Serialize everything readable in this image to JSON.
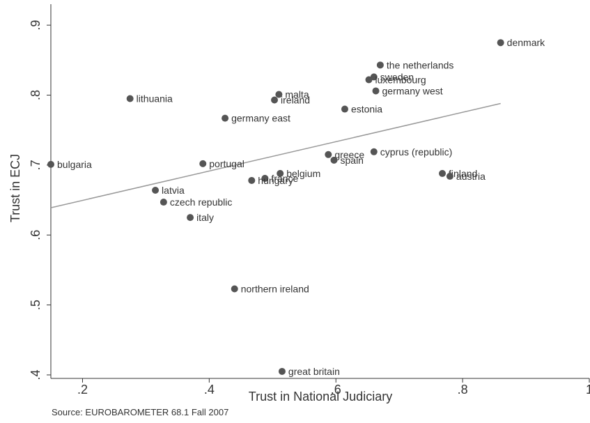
{
  "chart_data": {
    "type": "scatter",
    "xlabel": "Trust in National Judiciary",
    "ylabel": "Trust in ECJ",
    "xlim": [
      0.15,
      1.0
    ],
    "ylim": [
      0.395,
      0.93
    ],
    "xticks": [
      {
        "value": 0.2,
        "label": ".2"
      },
      {
        "value": 0.4,
        "label": ".4"
      },
      {
        "value": 0.6,
        "label": ".6"
      },
      {
        "value": 0.8,
        "label": ".8"
      },
      {
        "value": 1.0,
        "label": "1"
      }
    ],
    "yticks": [
      {
        "value": 0.4,
        "label": ".4"
      },
      {
        "value": 0.5,
        "label": ".5"
      },
      {
        "value": 0.6,
        "label": ".6"
      },
      {
        "value": 0.7,
        "label": ".7"
      },
      {
        "value": 0.8,
        "label": ".8"
      },
      {
        "value": 0.9,
        "label": ".9"
      }
    ],
    "grid": false,
    "marker_color": "#555555",
    "fit_line_color": "#999999",
    "fit_line": {
      "x": [
        0.15,
        0.86
      ],
      "y": [
        0.639,
        0.788
      ]
    },
    "points": [
      {
        "label": "denmark",
        "x": 0.86,
        "y": 0.875
      },
      {
        "label": "the netherlands",
        "x": 0.67,
        "y": 0.843
      },
      {
        "label": "sweden",
        "x": 0.66,
        "y": 0.826
      },
      {
        "label": "luxembourg",
        "x": 0.652,
        "y": 0.822
      },
      {
        "label": "germany west",
        "x": 0.663,
        "y": 0.806
      },
      {
        "label": "malta",
        "x": 0.51,
        "y": 0.801
      },
      {
        "label": "ireland",
        "x": 0.503,
        "y": 0.793
      },
      {
        "label": "lithuania",
        "x": 0.275,
        "y": 0.795
      },
      {
        "label": "estonia",
        "x": 0.614,
        "y": 0.78
      },
      {
        "label": "germany east",
        "x": 0.425,
        "y": 0.767
      },
      {
        "label": "cyprus (republic)",
        "x": 0.66,
        "y": 0.719
      },
      {
        "label": "greece",
        "x": 0.588,
        "y": 0.715
      },
      {
        "label": "spain",
        "x": 0.597,
        "y": 0.707
      },
      {
        "label": "bulgaria",
        "x": 0.15,
        "y": 0.701
      },
      {
        "label": "portugal",
        "x": 0.39,
        "y": 0.702
      },
      {
        "label": "belgium",
        "x": 0.512,
        "y": 0.688
      },
      {
        "label": "france",
        "x": 0.488,
        "y": 0.681
      },
      {
        "label": "hungary",
        "x": 0.467,
        "y": 0.678
      },
      {
        "label": "finland",
        "x": 0.768,
        "y": 0.688
      },
      {
        "label": "austria",
        "x": 0.78,
        "y": 0.684
      },
      {
        "label": "latvia",
        "x": 0.315,
        "y": 0.664
      },
      {
        "label": "czech republic",
        "x": 0.328,
        "y": 0.647
      },
      {
        "label": "italy",
        "x": 0.37,
        "y": 0.625
      },
      {
        "label": "northern ireland",
        "x": 0.44,
        "y": 0.523
      },
      {
        "label": "great britain",
        "x": 0.515,
        "y": 0.405
      }
    ]
  },
  "source": "Source: EUROBAROMETER 68.1 Fall 2007"
}
